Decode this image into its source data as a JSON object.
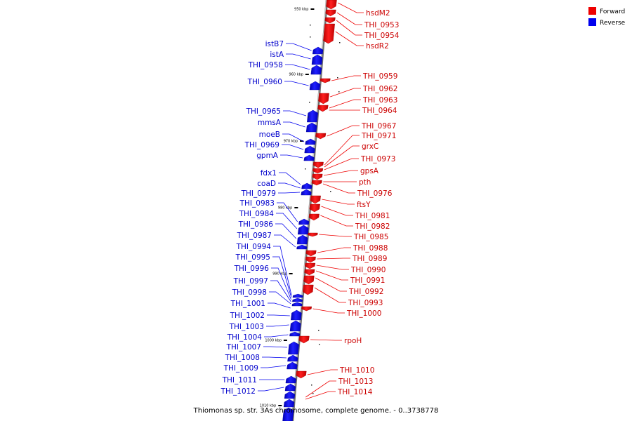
{
  "title": "Thiomonas sp. str. 3As chromosome, complete genome. - 0..3738778",
  "legend": [
    {
      "label": "Forward",
      "color": "#ee0000"
    },
    {
      "label": "Reverse",
      "color": "#0000ee"
    }
  ],
  "colors": {
    "forward": "#ee0000",
    "reverse": "#0000ee",
    "backbone": "#909090"
  },
  "ticks": [
    {
      "label": "950 kbp"
    },
    {
      "label": "960 kbp"
    },
    {
      "label": "970 kbp"
    },
    {
      "label": "980 kbp"
    },
    {
      "label": "990 kbp"
    },
    {
      "label": "1000 kbp"
    },
    {
      "label": "1010 kbp"
    }
  ],
  "forward_genes": [
    {
      "name": "hsdM2"
    },
    {
      "name": "THI_0953"
    },
    {
      "name": "THI_0954"
    },
    {
      "name": "hsdR2"
    },
    {
      "name": "THI_0959"
    },
    {
      "name": "THI_0962"
    },
    {
      "name": "THI_0963"
    },
    {
      "name": "THI_0964"
    },
    {
      "name": "THI_0967"
    },
    {
      "name": "THI_0971"
    },
    {
      "name": "grxC"
    },
    {
      "name": "THI_0973"
    },
    {
      "name": "gpsA"
    },
    {
      "name": "pth"
    },
    {
      "name": "THI_0976"
    },
    {
      "name": "ftsY"
    },
    {
      "name": "THI_0981"
    },
    {
      "name": "THI_0982"
    },
    {
      "name": "THI_0985"
    },
    {
      "name": "THI_0988"
    },
    {
      "name": "THI_0989"
    },
    {
      "name": "THI_0990"
    },
    {
      "name": "THI_0991"
    },
    {
      "name": "THI_0992"
    },
    {
      "name": "THI_0993"
    },
    {
      "name": "THI_1000"
    },
    {
      "name": "rpoH"
    },
    {
      "name": "THI_1010"
    },
    {
      "name": "THI_1013"
    },
    {
      "name": "THI_1014"
    }
  ],
  "reverse_genes": [
    {
      "name": "istB7"
    },
    {
      "name": "istA"
    },
    {
      "name": "THI_0958"
    },
    {
      "name": "THI_0960"
    },
    {
      "name": "THI_0965"
    },
    {
      "name": "mmsA"
    },
    {
      "name": "moeB"
    },
    {
      "name": "THI_0969"
    },
    {
      "name": "gpmA"
    },
    {
      "name": "fdx1"
    },
    {
      "name": "coaD"
    },
    {
      "name": "THI_0979"
    },
    {
      "name": "THI_0983"
    },
    {
      "name": "THI_0984"
    },
    {
      "name": "THI_0986"
    },
    {
      "name": "THI_0987"
    },
    {
      "name": "THI_0994"
    },
    {
      "name": "THI_0995"
    },
    {
      "name": "THI_0996"
    },
    {
      "name": "THI_0997"
    },
    {
      "name": "THI_0998"
    },
    {
      "name": "THI_1001"
    },
    {
      "name": "THI_1002"
    },
    {
      "name": "THI_1003"
    },
    {
      "name": "THI_1004"
    },
    {
      "name": "THI_1007"
    },
    {
      "name": "THI_1008"
    },
    {
      "name": "THI_1009"
    },
    {
      "name": "THI_1011"
    },
    {
      "name": "THI_1012"
    }
  ]
}
